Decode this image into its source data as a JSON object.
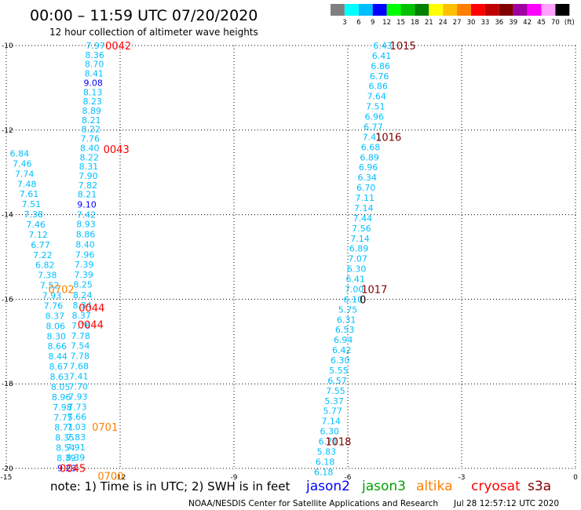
{
  "header": {
    "title": "00:00 – 11:59 UTC 07/20/2020",
    "subtitle": "12 hour collection of altimeter wave heights"
  },
  "color_scale": {
    "labels": [
      "3",
      "6",
      "9",
      "12",
      "15",
      "18",
      "21",
      "24",
      "27",
      "30",
      "33",
      "36",
      "39",
      "42",
      "45",
      "70",
      "(ft)"
    ],
    "colors": [
      "#7f7f7f",
      "#00ffff",
      "#00bfff",
      "#0000ff",
      "#00ff00",
      "#00c000",
      "#008000",
      "#ffff00",
      "#ffc000",
      "#ff8000",
      "#ff0000",
      "#c00000",
      "#800000",
      "#a000a0",
      "#ff00ff",
      "#ffa0ff",
      "#000000"
    ]
  },
  "note": {
    "text": "note: 1) Time is in UTC; 2) SWH is in feet",
    "satellites": [
      {
        "name": "jason2",
        "color": "#0000ff"
      },
      {
        "name": "jason3",
        "color": "#00a000"
      },
      {
        "name": "altika",
        "color": "#ff8000"
      },
      {
        "name": "cryosat",
        "color": "#ff0000"
      },
      {
        "name": "s3a",
        "color": "#800000"
      }
    ]
  },
  "footer": {
    "credit": "NOAA/NESDIS Center for Satellite Applications and Research",
    "timestamp": "Jul 28 12:57:12 UTC 2020"
  },
  "chart_data": {
    "type": "scatter",
    "title": "00:00 – 11:59 UTC 07/20/2020",
    "xlim": [
      -15,
      0
    ],
    "ylim": [
      -20,
      -10
    ],
    "x_ticks": [
      "-15",
      "-12",
      "-9",
      "-6",
      "-3",
      "0"
    ],
    "y_ticks": [
      "-10",
      "-12",
      "-14",
      "-16",
      "-18",
      "-20"
    ],
    "grid": true,
    "colors": {
      "c6": "#00bfff",
      "c9": "#0000ff"
    },
    "series": [
      {
        "points": [
          {
            "x": -12.65,
            "y": -10.0,
            "v": "7.97",
            "c": "c6"
          },
          {
            "x": -12.67,
            "y": -10.22,
            "v": "8.36",
            "c": "c6"
          },
          {
            "x": -12.68,
            "y": -10.44,
            "v": "8.70",
            "c": "c6"
          },
          {
            "x": -12.69,
            "y": -10.66,
            "v": "8.41",
            "c": "c6"
          },
          {
            "x": -12.71,
            "y": -10.88,
            "v": "9.08",
            "c": "c9"
          },
          {
            "x": -12.72,
            "y": -11.1,
            "v": "8.13",
            "c": "c6"
          },
          {
            "x": -12.73,
            "y": -11.32,
            "v": "8.23",
            "c": "c6"
          },
          {
            "x": -12.75,
            "y": -11.54,
            "v": "8.89",
            "c": "c6"
          },
          {
            "x": -12.76,
            "y": -11.76,
            "v": "8.21",
            "c": "c6"
          },
          {
            "x": -12.77,
            "y": -11.98,
            "v": "8.22",
            "c": "c6"
          },
          {
            "x": -12.79,
            "y": -12.2,
            "v": "7.76",
            "c": "c6"
          },
          {
            "x": -12.8,
            "y": -12.42,
            "v": "8.40",
            "c": "c6"
          },
          {
            "x": -12.81,
            "y": -12.64,
            "v": "8.22",
            "c": "c6"
          },
          {
            "x": -12.83,
            "y": -12.86,
            "v": "8.31",
            "c": "c6"
          },
          {
            "x": -12.84,
            "y": -13.08,
            "v": "7.90",
            "c": "c6"
          },
          {
            "x": -12.85,
            "y": -13.3,
            "v": "7.82",
            "c": "c6"
          },
          {
            "x": -12.87,
            "y": -13.52,
            "v": "8.21",
            "c": "c6"
          },
          {
            "x": -12.88,
            "y": -13.76,
            "v": "9.10",
            "c": "c9"
          },
          {
            "x": -12.89,
            "y": -14.0,
            "v": "7.42",
            "c": "c6"
          },
          {
            "x": -12.9,
            "y": -14.22,
            "v": "8.93",
            "c": "c6"
          },
          {
            "x": -12.91,
            "y": -14.46,
            "v": "8.86",
            "c": "c6"
          },
          {
            "x": -12.92,
            "y": -14.7,
            "v": "8.40",
            "c": "c6"
          },
          {
            "x": -12.93,
            "y": -14.94,
            "v": "7.96",
            "c": "c6"
          },
          {
            "x": -12.95,
            "y": -15.18,
            "v": "7.39",
            "c": "c6"
          },
          {
            "x": -12.96,
            "y": -15.42,
            "v": "7.39",
            "c": "c6"
          },
          {
            "x": -12.98,
            "y": -15.65,
            "v": "8.25",
            "c": "c6"
          },
          {
            "x": -12.99,
            "y": -15.9,
            "v": "8.24",
            "c": "c6"
          },
          {
            "x": -13.0,
            "y": -16.14,
            "v": "8.34",
            "c": "c6"
          },
          {
            "x": -13.02,
            "y": -16.38,
            "v": "8.37",
            "c": "c6"
          },
          {
            "x": -13.03,
            "y": -16.62,
            "v": "7.76",
            "c": "c6"
          },
          {
            "x": -13.04,
            "y": -16.86,
            "v": "7.78",
            "c": "c6"
          },
          {
            "x": -13.05,
            "y": -17.1,
            "v": "7.54",
            "c": "c6"
          },
          {
            "x": -13.06,
            "y": -17.34,
            "v": "7.78",
            "c": "c6"
          },
          {
            "x": -13.08,
            "y": -17.58,
            "v": "7.68",
            "c": "c6"
          },
          {
            "x": -13.09,
            "y": -17.82,
            "v": "7.41",
            "c": "c6"
          },
          {
            "x": -13.1,
            "y": -18.06,
            "v": "7.70",
            "c": "c6"
          },
          {
            "x": -13.11,
            "y": -18.3,
            "v": "7.93",
            "c": "c6"
          },
          {
            "x": -13.13,
            "y": -18.54,
            "v": "7.73",
            "c": "c6"
          },
          {
            "x": -13.14,
            "y": -18.78,
            "v": "7.66",
            "c": "c6"
          },
          {
            "x": -13.15,
            "y": -19.02,
            "v": "7.03",
            "c": "c6"
          },
          {
            "x": -13.16,
            "y": -19.26,
            "v": "7.83",
            "c": "c6"
          },
          {
            "x": -13.17,
            "y": -19.5,
            "v": "7.91",
            "c": "c6"
          },
          {
            "x": -13.18,
            "y": -19.74,
            "v": "8.39",
            "c": "c6"
          }
        ]
      },
      {
        "points": [
          {
            "x": -14.65,
            "y": -12.55,
            "v": "6.84",
            "c": "c6"
          },
          {
            "x": -14.58,
            "y": -12.79,
            "v": "7.46",
            "c": "c6"
          },
          {
            "x": -14.52,
            "y": -13.03,
            "v": "7.74",
            "c": "c6"
          },
          {
            "x": -14.46,
            "y": -13.27,
            "v": "7.48",
            "c": "c6"
          },
          {
            "x": -14.4,
            "y": -13.51,
            "v": "7.61",
            "c": "c6"
          },
          {
            "x": -14.34,
            "y": -13.75,
            "v": "7.51",
            "c": "c6"
          },
          {
            "x": -14.28,
            "y": -13.99,
            "v": "7.38",
            "c": "c6"
          },
          {
            "x": -14.22,
            "y": -14.23,
            "v": "7.46",
            "c": "c6"
          },
          {
            "x": -14.16,
            "y": -14.47,
            "v": "7.12",
            "c": "c6"
          },
          {
            "x": -14.1,
            "y": -14.71,
            "v": "6.77",
            "c": "c6"
          },
          {
            "x": -14.04,
            "y": -14.95,
            "v": "7.22",
            "c": "c6"
          },
          {
            "x": -13.98,
            "y": -15.19,
            "v": "6.82",
            "c": "c6"
          },
          {
            "x": -13.92,
            "y": -15.43,
            "v": "7.38",
            "c": "c6"
          },
          {
            "x": -13.86,
            "y": -15.67,
            "v": "7.52",
            "c": "c6"
          },
          {
            "x": -13.8,
            "y": -15.91,
            "v": "7.93",
            "c": "c6"
          },
          {
            "x": -13.76,
            "y": -16.15,
            "v": "7.76",
            "c": "c6"
          },
          {
            "x": -13.72,
            "y": -16.39,
            "v": "8.37",
            "c": "c6"
          },
          {
            "x": -13.7,
            "y": -16.63,
            "v": "8.06",
            "c": "c6"
          },
          {
            "x": -13.68,
            "y": -16.87,
            "v": "8.30",
            "c": "c6"
          },
          {
            "x": -13.66,
            "y": -17.11,
            "v": "8.66",
            "c": "c6"
          },
          {
            "x": -13.64,
            "y": -17.35,
            "v": "8.44",
            "c": "c6"
          },
          {
            "x": -13.62,
            "y": -17.59,
            "v": "8.67",
            "c": "c6"
          },
          {
            "x": -13.6,
            "y": -17.83,
            "v": "8.63",
            "c": "c6"
          },
          {
            "x": -13.57,
            "y": -18.07,
            "v": "8.05",
            "c": "c6"
          },
          {
            "x": -13.55,
            "y": -18.31,
            "v": "8.96",
            "c": "c6"
          },
          {
            "x": -13.52,
            "y": -18.55,
            "v": "7.98",
            "c": "c6"
          },
          {
            "x": -13.5,
            "y": -18.79,
            "v": "7.75",
            "c": "c6"
          },
          {
            "x": -13.48,
            "y": -19.03,
            "v": "8.71",
            "c": "c6"
          },
          {
            "x": -13.46,
            "y": -19.27,
            "v": "8.35",
            "c": "c6"
          },
          {
            "x": -13.44,
            "y": -19.51,
            "v": "8.54",
            "c": "c6"
          },
          {
            "x": -13.42,
            "y": -19.75,
            "v": "8.39",
            "c": "c6"
          },
          {
            "x": -13.4,
            "y": -19.99,
            "v": "9.23",
            "c": "c9"
          }
        ]
      },
      {
        "points": [
          {
            "x": -5.08,
            "y": -10.0,
            "v": "6.43",
            "c": "c6"
          },
          {
            "x": -5.11,
            "y": -10.24,
            "v": "6.41",
            "c": "c6"
          },
          {
            "x": -5.14,
            "y": -10.48,
            "v": "6.86",
            "c": "c6"
          },
          {
            "x": -5.17,
            "y": -10.72,
            "v": "6.76",
            "c": "c6"
          },
          {
            "x": -5.2,
            "y": -10.96,
            "v": "6.86",
            "c": "c6"
          },
          {
            "x": -5.24,
            "y": -11.2,
            "v": "7.64",
            "c": "c6"
          },
          {
            "x": -5.27,
            "y": -11.44,
            "v": "7.51",
            "c": "c6"
          },
          {
            "x": -5.3,
            "y": -11.68,
            "v": "6.96",
            "c": "c6"
          },
          {
            "x": -5.33,
            "y": -11.92,
            "v": "6.77",
            "c": "c6"
          },
          {
            "x": -5.36,
            "y": -12.16,
            "v": "7.41",
            "c": "c6"
          },
          {
            "x": -5.4,
            "y": -12.4,
            "v": "6.68",
            "c": "c6"
          },
          {
            "x": -5.43,
            "y": -12.64,
            "v": "6.89",
            "c": "c6"
          },
          {
            "x": -5.46,
            "y": -12.88,
            "v": "6.96",
            "c": "c6"
          },
          {
            "x": -5.49,
            "y": -13.12,
            "v": "6.34",
            "c": "c6"
          },
          {
            "x": -5.52,
            "y": -13.36,
            "v": "6.70",
            "c": "c6"
          },
          {
            "x": -5.55,
            "y": -13.6,
            "v": "7.11",
            "c": "c6"
          },
          {
            "x": -5.58,
            "y": -13.84,
            "v": "7.14",
            "c": "c6"
          },
          {
            "x": -5.61,
            "y": -14.08,
            "v": "7.44",
            "c": "c6"
          },
          {
            "x": -5.64,
            "y": -14.32,
            "v": "7.56",
            "c": "c6"
          },
          {
            "x": -5.68,
            "y": -14.56,
            "v": "7.14",
            "c": "c6"
          },
          {
            "x": -5.71,
            "y": -14.8,
            "v": "6.89",
            "c": "c6"
          },
          {
            "x": -5.74,
            "y": -15.04,
            "v": "7.07",
            "c": "c6"
          },
          {
            "x": -5.77,
            "y": -15.28,
            "v": "6.30",
            "c": "c6"
          },
          {
            "x": -5.8,
            "y": -15.52,
            "v": "6.41",
            "c": "c6"
          },
          {
            "x": -5.83,
            "y": -15.76,
            "v": "7.00",
            "c": "c6"
          },
          {
            "x": -5.86,
            "y": -16.0,
            "v": "6.10",
            "c": "c6"
          },
          {
            "x": -6.0,
            "y": -16.24,
            "v": "5.75",
            "c": "c6"
          },
          {
            "x": -6.04,
            "y": -16.48,
            "v": "6.31",
            "c": "c6"
          },
          {
            "x": -6.08,
            "y": -16.72,
            "v": "6.53",
            "c": "c6"
          },
          {
            "x": -6.12,
            "y": -16.96,
            "v": "6.94",
            "c": "c6"
          },
          {
            "x": -6.16,
            "y": -17.2,
            "v": "6.42",
            "c": "c6"
          },
          {
            "x": -6.2,
            "y": -17.44,
            "v": "6.30",
            "c": "c6"
          },
          {
            "x": -6.24,
            "y": -17.68,
            "v": "5.55",
            "c": "c6"
          },
          {
            "x": -6.28,
            "y": -17.92,
            "v": "6.57",
            "c": "c6"
          },
          {
            "x": -6.32,
            "y": -18.16,
            "v": "7.55",
            "c": "c6"
          },
          {
            "x": -6.36,
            "y": -18.4,
            "v": "5.37",
            "c": "c6"
          },
          {
            "x": -6.4,
            "y": -18.64,
            "v": "5.77",
            "c": "c6"
          },
          {
            "x": -6.44,
            "y": -18.88,
            "v": "7.14",
            "c": "c6"
          },
          {
            "x": -6.48,
            "y": -19.12,
            "v": "6.30",
            "c": "c6"
          },
          {
            "x": -6.52,
            "y": -19.36,
            "v": "6.71",
            "c": "c6"
          },
          {
            "x": -6.56,
            "y": -19.6,
            "v": "5.83",
            "c": "c6"
          },
          {
            "x": -6.6,
            "y": -19.84,
            "v": "6.18",
            "c": "c6"
          },
          {
            "x": -6.64,
            "y": -20.08,
            "v": "6.18",
            "c": "c6"
          }
        ]
      }
    ],
    "annotations": [
      {
        "x": -12.05,
        "y": -10.0,
        "text": "0042",
        "color": "#ff0000"
      },
      {
        "x": -12.1,
        "y": -12.45,
        "text": "0043",
        "color": "#ff0000"
      },
      {
        "x": -13.55,
        "y": -15.76,
        "text": "0702",
        "color": "#ff8000"
      },
      {
        "x": -12.75,
        "y": -16.2,
        "text": "0044",
        "color": "#ff0000"
      },
      {
        "x": -12.78,
        "y": -16.6,
        "text": "0044",
        "color": "#ff0000"
      },
      {
        "x": -12.4,
        "y": -19.02,
        "text": "0701",
        "color": "#ff8000"
      },
      {
        "x": -13.25,
        "y": -19.99,
        "text": "0045",
        "color": "#ff0000"
      },
      {
        "x": -12.25,
        "y": -20.18,
        "text": "0700",
        "color": "#ff8000"
      },
      {
        "x": -4.55,
        "y": -10.0,
        "text": "1015",
        "color": "#800000"
      },
      {
        "x": -4.93,
        "y": -12.16,
        "text": "1016",
        "color": "#800000"
      },
      {
        "x": -5.3,
        "y": -15.76,
        "text": "1017",
        "color": "#800000"
      },
      {
        "x": -5.6,
        "y": -16.0,
        "text": "0",
        "color": "#000000"
      },
      {
        "x": -6.25,
        "y": -19.36,
        "text": "1018",
        "color": "#800000"
      }
    ]
  }
}
